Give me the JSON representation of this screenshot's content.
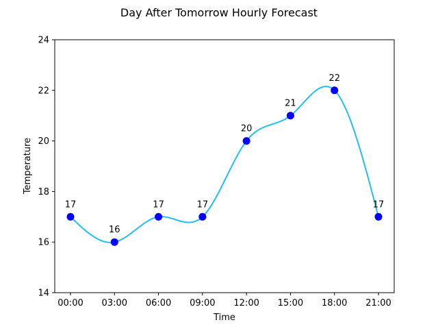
{
  "chart_data": {
    "type": "line",
    "title": "Day After Tomorrow Hourly Forecast",
    "xlabel": "Time",
    "ylabel": "Temperature",
    "categories": [
      "00:00",
      "03:00",
      "06:00",
      "09:00",
      "12:00",
      "15:00",
      "18:00",
      "21:00"
    ],
    "series": [
      {
        "values": [
          17,
          16,
          17,
          17,
          20,
          21,
          22,
          17
        ]
      }
    ],
    "ylim": [
      14,
      24
    ],
    "yticks": [
      "14",
      "16",
      "18",
      "20",
      "22",
      "24"
    ],
    "data_labels": [
      "17",
      "16",
      "17",
      "17",
      "20",
      "21",
      "22",
      "17"
    ],
    "grid": false,
    "legend": "none",
    "line_color": "#1fbfef",
    "marker_color": "#0000ff"
  }
}
